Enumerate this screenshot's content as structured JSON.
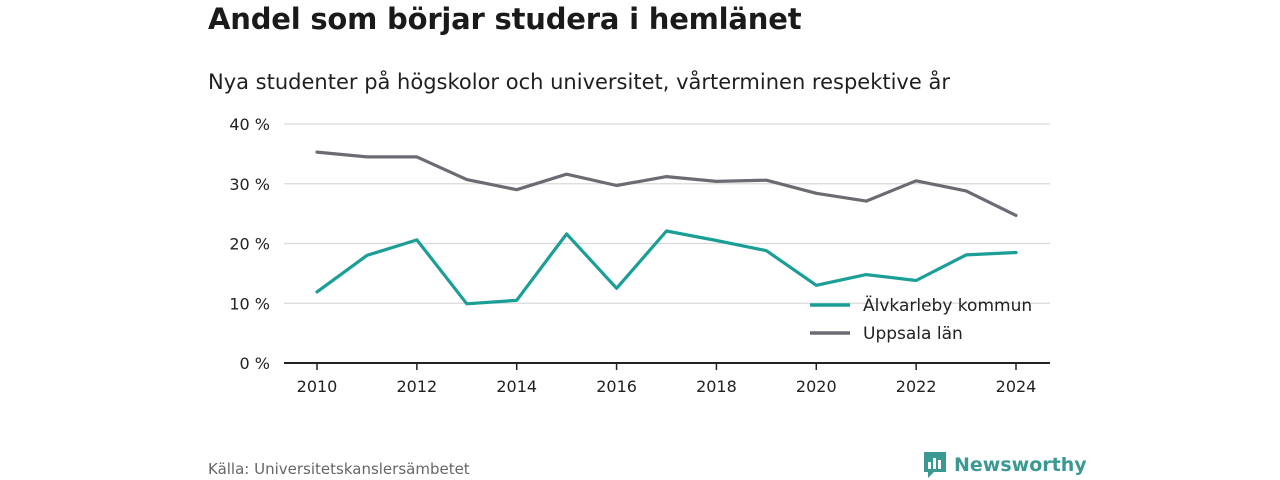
{
  "title": "Andel som börjar studera i hemlänet",
  "subtitle": "Nya studenter på högskolor och universitet, vårterminen respektive år",
  "source": "Källa: Universitetskanslersämbetet",
  "brand": "Newsworthy",
  "colors": {
    "alvkarleby": "#1a9e96",
    "uppsala": "#6c6b73",
    "grid": "#d9d9d9",
    "axis": "#222222",
    "brand": "#3a9a93"
  },
  "chart_data": {
    "type": "line",
    "x": [
      2010,
      2011,
      2012,
      2013,
      2014,
      2015,
      2016,
      2017,
      2018,
      2019,
      2020,
      2021,
      2022,
      2023,
      2024
    ],
    "x_ticks": [
      "2010",
      "2012",
      "2014",
      "2016",
      "2018",
      "2020",
      "2022",
      "2024"
    ],
    "y_ticks": [
      "0 %",
      "10 %",
      "20 %",
      "30 %",
      "40 %"
    ],
    "ylim": [
      0,
      40
    ],
    "grid": true,
    "legend_position": "bottom-right",
    "series": [
      {
        "name": "Älvkarleby kommun",
        "color_key": "alvkarleby",
        "values": [
          11.9,
          18.0,
          20.6,
          9.9,
          10.5,
          21.6,
          12.5,
          22.1,
          20.5,
          18.8,
          13.0,
          14.8,
          13.8,
          18.1,
          18.5
        ]
      },
      {
        "name": "Uppsala län",
        "color_key": "uppsala",
        "values": [
          35.3,
          34.5,
          34.5,
          30.7,
          29.0,
          31.6,
          29.7,
          31.2,
          30.4,
          30.6,
          28.4,
          27.1,
          30.5,
          28.8,
          24.7
        ]
      }
    ]
  }
}
